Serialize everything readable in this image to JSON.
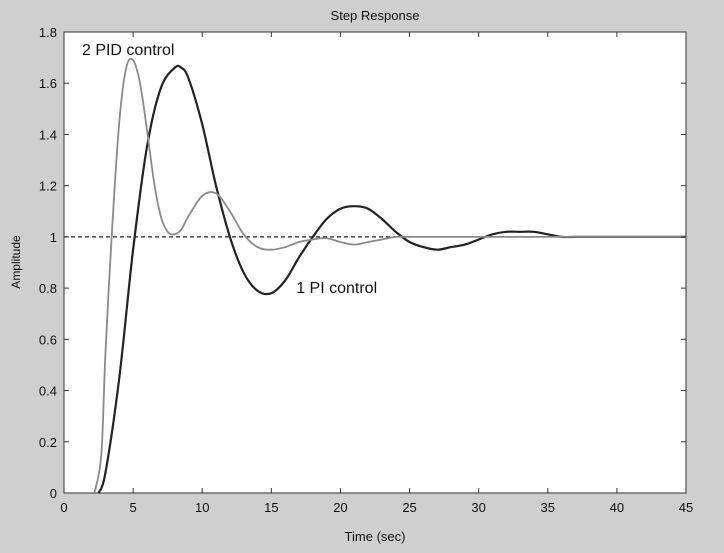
{
  "chart_data": {
    "type": "line",
    "title": "Step Response",
    "xlabel": "Time (sec)",
    "ylabel": "Amplitude",
    "xlim": [
      0,
      45
    ],
    "ylim": [
      0,
      1.8
    ],
    "xticks": [
      0,
      5,
      10,
      15,
      20,
      25,
      30,
      35,
      40,
      45
    ],
    "yticks": [
      0,
      0.2,
      0.4,
      0.6,
      0.8,
      1,
      1.2,
      1.4,
      1.6,
      1.8
    ],
    "grid": false,
    "reference_line": {
      "y": 1,
      "style": "dashed"
    },
    "annotations": [
      {
        "text": "2 PID control",
        "x": 1.3,
        "y": 1.71
      },
      {
        "text": "1 PI control",
        "x": 16.8,
        "y": 0.78
      }
    ],
    "series": [
      {
        "name": "1 PI control",
        "color": "#222222",
        "x": [
          2.5,
          3,
          4,
          5,
          6,
          7,
          8,
          8.5,
          9,
          10,
          11,
          12,
          13,
          14,
          15,
          16,
          17,
          18,
          19,
          20,
          21,
          22,
          23,
          24,
          25,
          26,
          27,
          28,
          29,
          30,
          31,
          32,
          33,
          34,
          35,
          36,
          37,
          38,
          39,
          40,
          41,
          42,
          43,
          44,
          45
        ],
        "y": [
          0,
          0.08,
          0.45,
          0.95,
          1.35,
          1.58,
          1.66,
          1.66,
          1.62,
          1.44,
          1.2,
          1.0,
          0.86,
          0.79,
          0.78,
          0.83,
          0.92,
          1.0,
          1.07,
          1.11,
          1.12,
          1.11,
          1.07,
          1.02,
          0.98,
          0.96,
          0.95,
          0.96,
          0.97,
          0.99,
          1.01,
          1.02,
          1.02,
          1.02,
          1.01,
          1.0,
          1.0,
          1.0,
          1.0,
          1.0,
          1.0,
          1.0,
          1.0,
          1.0,
          1.0
        ]
      },
      {
        "name": "2 PID control",
        "color": "#8a8a8a",
        "x": [
          2.2,
          2.7,
          3,
          3.5,
          4,
          4.5,
          5,
          5.5,
          6,
          6.5,
          7,
          7.5,
          8,
          8.5,
          9,
          10,
          11,
          12,
          13,
          14,
          15,
          16,
          17,
          18,
          19,
          20,
          21,
          22,
          23,
          24,
          25,
          26,
          27,
          28,
          30,
          33,
          35,
          38,
          40,
          45
        ],
        "y": [
          0,
          0.15,
          0.55,
          1.05,
          1.45,
          1.66,
          1.69,
          1.6,
          1.42,
          1.22,
          1.08,
          1.02,
          1.01,
          1.03,
          1.08,
          1.16,
          1.17,
          1.1,
          1.01,
          0.96,
          0.95,
          0.96,
          0.98,
          0.99,
          0.995,
          0.98,
          0.97,
          0.98,
          0.99,
          1.0,
          1.0,
          1.0,
          1.0,
          1.0,
          1.0,
          1.0,
          1.0,
          1.0,
          1.0,
          1.0
        ]
      }
    ]
  }
}
